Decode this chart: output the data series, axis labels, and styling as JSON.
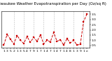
{
  "title": "Milwaukee Weather Evapotranspiration per Day (Oz/sq ft)",
  "values": [
    0.55,
    1.55,
    1.1,
    0.65,
    1.45,
    1.0,
    0.7,
    1.35,
    0.8,
    1.3,
    0.9,
    1.5,
    0.65,
    1.0,
    0.85,
    1.75,
    0.9,
    1.05,
    0.55,
    1.15,
    0.75,
    1.0,
    0.55,
    0.6,
    2.8,
    3.5
  ],
  "ylim": [
    0.3,
    3.8
  ],
  "yticks": [
    0.5,
    1.0,
    1.5,
    2.0,
    2.5,
    3.0,
    3.5
  ],
  "ytick_labels": [
    "0.5",
    "1.0",
    "1.5",
    "2.0",
    "2.5",
    "3.0",
    "3.5"
  ],
  "x_labels": [
    "1",
    "3",
    "5",
    "2",
    "1",
    "3",
    "5",
    "4",
    "7",
    "9",
    "1",
    "7",
    "1",
    "4",
    "7",
    "1",
    "4",
    "7",
    "1",
    "4",
    "8",
    "1",
    "3",
    "9",
    "1",
    "e"
  ],
  "grid_x_positions": [
    3,
    6,
    9,
    12,
    15,
    18,
    21,
    24
  ],
  "line_color": "#cc0000",
  "marker": "s",
  "markersize": 1.5,
  "linewidth": 0.7,
  "linestyle": "--",
  "grid_color": "#bbbbbb",
  "bg_color": "#ffffff",
  "title_fontsize": 4.0,
  "tick_fontsize": 3.2,
  "fig_width": 1.6,
  "fig_height": 0.87,
  "dpi": 100
}
